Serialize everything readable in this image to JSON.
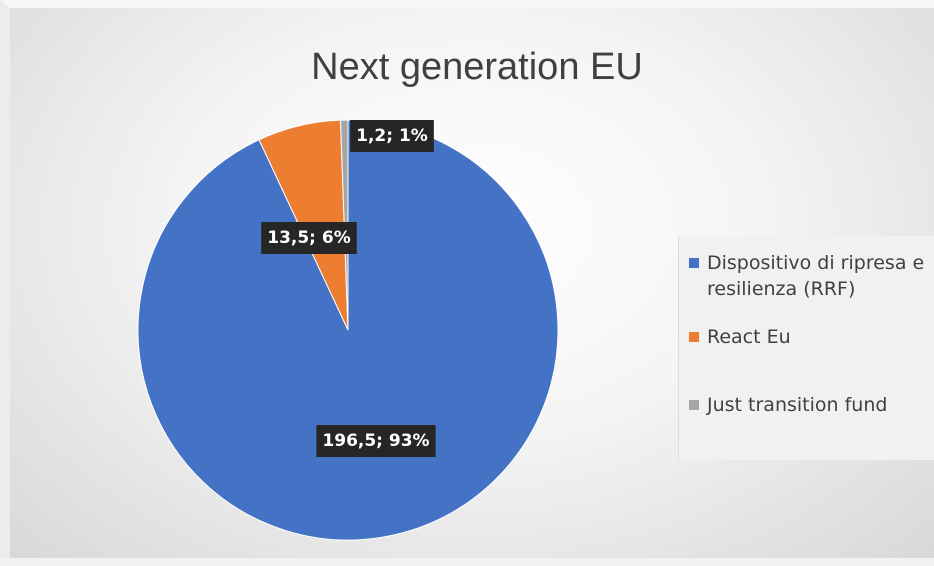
{
  "chart_data": {
    "type": "pie",
    "title": "Next generation EU",
    "categories": [
      "Dispositivo di ripresa e resilienza (RRF)",
      "React Eu",
      "Just transition fund"
    ],
    "values": [
      196.5,
      13.5,
      1.2
    ],
    "data_labels": [
      "196,5; 93%",
      "13,5; 6%",
      "1,2; 1%"
    ],
    "colors": [
      "#4472c4",
      "#ed7d31",
      "#a5a5a5"
    ],
    "legend_position": "right",
    "start_angle": "12 o'clock, clockwise"
  }
}
